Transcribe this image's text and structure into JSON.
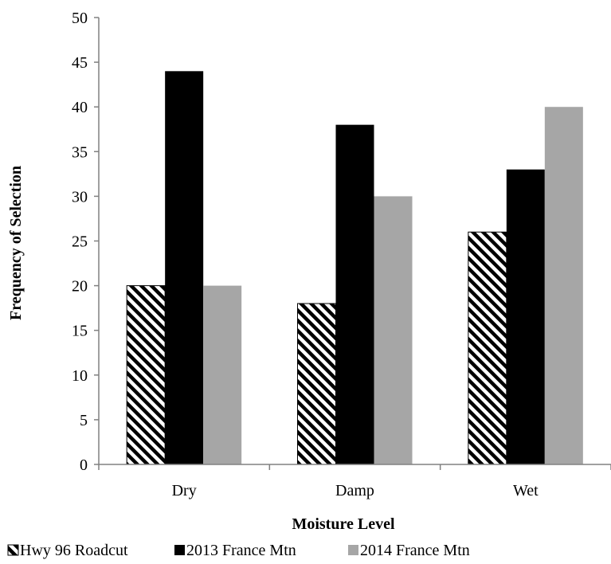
{
  "chart_data": {
    "type": "bar",
    "title": "",
    "xlabel": "Moisture Level",
    "ylabel": "Frequency of Selection",
    "categories": [
      "Dry",
      "Damp",
      "Wet"
    ],
    "ylim": [
      0,
      50
    ],
    "yticks": [
      "0",
      "5",
      "10",
      "15",
      "20",
      "25",
      "30",
      "35",
      "40",
      "45",
      "50"
    ],
    "grid": false,
    "legend_position": "bottom",
    "series": [
      {
        "name": "Hwy 96 Roadcut",
        "values": [
          20,
          18,
          26
        ],
        "fill": "hatch",
        "color": "#000000"
      },
      {
        "name": "2013 France Mtn",
        "values": [
          44,
          38,
          33
        ],
        "fill": "solid",
        "color": "#000000"
      },
      {
        "name": "2014 France Mtn",
        "values": [
          20,
          30,
          40
        ],
        "fill": "solid",
        "color": "#a6a6a6"
      }
    ]
  }
}
